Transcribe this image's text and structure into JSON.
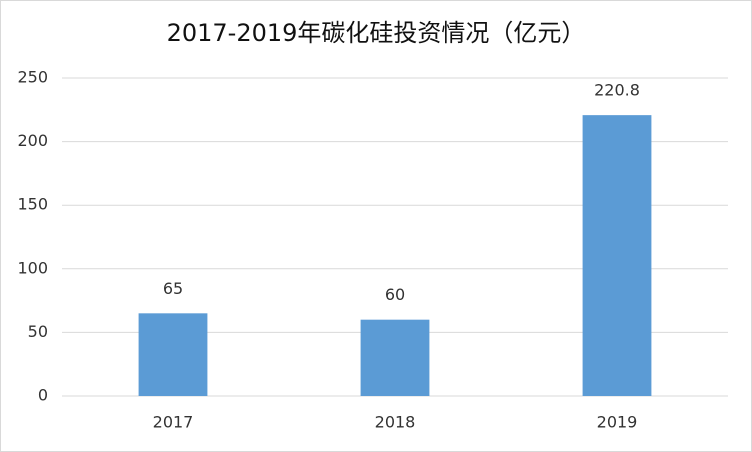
{
  "chart_data": {
    "type": "bar",
    "title": "2017-2019年碳化硅投资情况（亿元）",
    "categories": [
      "2017",
      "2018",
      "2019"
    ],
    "values": [
      65,
      60,
      220.8
    ],
    "color": "#5b9bd5",
    "ylim": [
      0,
      250
    ],
    "yticks": [
      0,
      50,
      100,
      150,
      200,
      250
    ],
    "grid": true
  }
}
